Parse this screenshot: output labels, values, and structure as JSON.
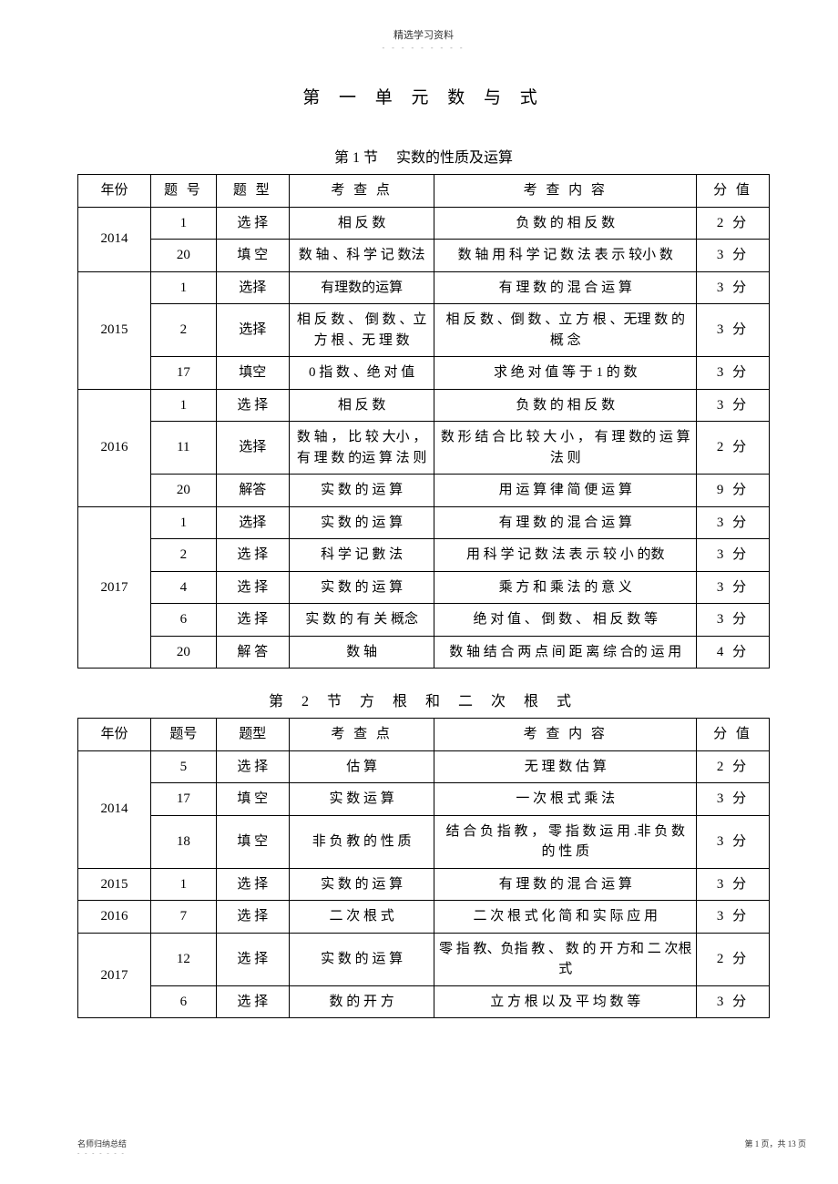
{
  "header": {
    "small_text": "精选学习资料",
    "dots": "- - - - - - - - -"
  },
  "chapter_title": "第 一 单 元 数 与 式",
  "section1": {
    "title": "第 1 节　 实数的性质及运算",
    "headers": {
      "year": "年份",
      "num": "题 号",
      "type": "题 型",
      "point": "考 查 点",
      "content": "考 查 内 容",
      "score": "分 值"
    },
    "rows": [
      {
        "year": "2014",
        "rowspan": 2,
        "num": "1",
        "type": "选 择",
        "point": "相 反 数",
        "content": "负 数 的 相 反 数",
        "score": "2 分"
      },
      {
        "num": "20",
        "type": "填 空",
        "point": "数 轴 、科 学 记 数法",
        "content": "数 轴 用 科 学 记 数 法 表 示 较小 数",
        "score": "3 分"
      },
      {
        "year": "2015",
        "rowspan": 3,
        "num": "1",
        "type": "选择",
        "point": "有理数的运算",
        "content": "有 理 数 的 混 合 运 算",
        "score": "3 分"
      },
      {
        "num": "2",
        "type": "选择",
        "point": "相 反 数 、 倒 数 、立 方 根 、无 理 数",
        "content": "相 反 数 、倒 数 、立 方 根 、无理 数 的 概 念",
        "score": "3 分"
      },
      {
        "num": "17",
        "type": "填空",
        "point": "0 指 数 、绝 对 值",
        "content": "求 绝 对 值 等 于  1 的 数",
        "score": "3 分"
      },
      {
        "year": "2016",
        "rowspan": 3,
        "num": "1",
        "type": "选 择",
        "point": "相 反 数",
        "content": "负 数 的 相 反 数",
        "score": "3 分"
      },
      {
        "num": "11",
        "type": "选择",
        "point": "数 轴 ， 比 较 大小 ， 有 理 数  的运 算 法 则",
        "content": "数 形 结 合 比 较 大 小 ， 有 理 数的 运 算 法 则",
        "score": "2 分"
      },
      {
        "num": "20",
        "type": "解答",
        "point": "实 数 的 运 算",
        "content": "用 运 算 律 简 便 运 算",
        "score": "9 分"
      },
      {
        "year": "2017",
        "rowspan": 5,
        "num": "1",
        "type": "选择",
        "point": "实 数 的 运 算",
        "content": "有 理 数 的 混 合 运 算",
        "score": "3 分"
      },
      {
        "num": "2",
        "type": "选 择",
        "point": "科 学 记 數 法",
        "content": "用 科 学 记 数 法 表 示 较 小 的数",
        "score": "3 分"
      },
      {
        "num": "4",
        "type": "选 择",
        "point": "实 数 的 运 算",
        "content": "乘 方 和 乘 法 的 意 义",
        "score": "3 分"
      },
      {
        "num": "6",
        "type": "选 择",
        "point": "实 数 的 有 关 概念",
        "content": "绝 对 值 、 倒 数 、 相 反 数 等",
        "score": "3 分"
      },
      {
        "num": "20",
        "type": "解 答",
        "point": "数 轴",
        "content": "数 轴 结 合 两 点 间 距 离 综 合的 运 用",
        "score": "4 分"
      }
    ]
  },
  "section2": {
    "title": "第  2  节  方  根  和  二  次  根  式",
    "headers": {
      "year": "年份",
      "num": "题号",
      "type": "题型",
      "point": "考 查 点",
      "content": "考 查 内 容",
      "score": "分 值"
    },
    "rows": [
      {
        "year": "2014",
        "rowspan": 3,
        "num": "5",
        "type": "选 择",
        "point": "估 算",
        "content": "无 理 数 估 算",
        "score": "2 分"
      },
      {
        "num": "17",
        "type": "填 空",
        "point": "实 数 运 算",
        "content": "一 次 根 式 乘 法",
        "score": "3 分"
      },
      {
        "num": "18",
        "type": "填 空",
        "point": "非 负 教 的 性 质",
        "content": "结 合 负 指 教 ， 零 指 数 运 用 .非 负 数 的 性 质",
        "score": "3 分"
      },
      {
        "year": "2015",
        "rowspan": 1,
        "num": "1",
        "type": "选 择",
        "point": "实 数 的 运 算",
        "content": "有 理 数 的 混 合 运 算",
        "score": "3 分"
      },
      {
        "year": "2016",
        "rowspan": 1,
        "num": "7",
        "type": "选 择",
        "point": "二 次 根 式",
        "content": "二 次 根 式 化 简 和 实 际 应 用",
        "score": "3 分"
      },
      {
        "year": "2017",
        "rowspan": 2,
        "num": "12",
        "type": "选 择",
        "point": "实 数 的 运 算",
        "content": "零 指 教、负指  教 、 数 的 开 方和 二 次根 式",
        "score": "2 分"
      },
      {
        "num": "6",
        "type": "选 择",
        "point": "数 的 开 方",
        "content": "立 方 根 以 及 平 均 数 等",
        "score": "3 分"
      }
    ]
  },
  "footer": {
    "left": "名师归纳总结",
    "left_dots": "- - - - - - -",
    "right": "第 1 页，共 13 页"
  }
}
